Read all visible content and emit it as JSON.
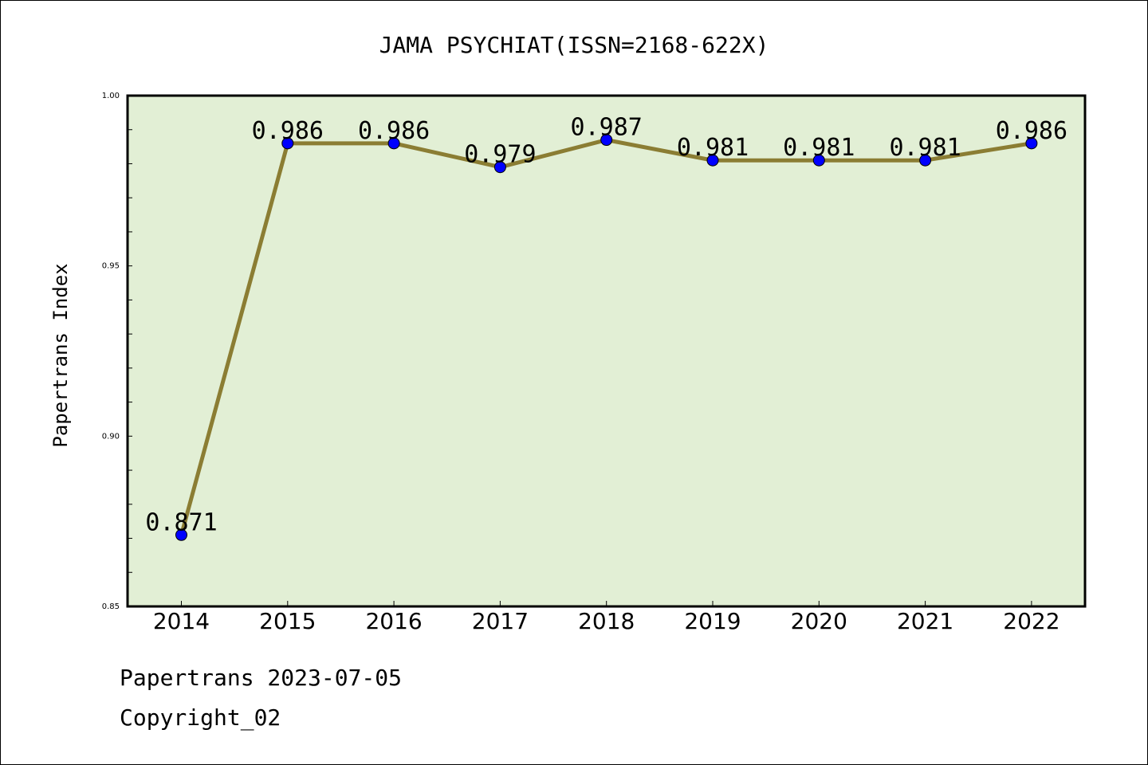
{
  "chart_data": {
    "type": "line",
    "title": "JAMA PSYCHIAT(ISSN=2168-622X)",
    "xlabel": "",
    "ylabel": "Papertrans Index",
    "categories": [
      "2014",
      "2015",
      "2016",
      "2017",
      "2018",
      "2019",
      "2020",
      "2021",
      "2022"
    ],
    "series": [
      {
        "values": [
          0.871,
          0.986,
          0.986,
          0.979,
          0.987,
          0.981,
          0.981,
          0.981,
          0.986
        ],
        "labels": [
          "0.871",
          "0.986",
          "0.986",
          "0.979",
          "0.987",
          "0.981",
          "0.981",
          "0.981",
          "0.986"
        ]
      }
    ],
    "ylim": [
      0.85,
      1.0
    ],
    "yticks": [
      "0.85",
      "0.90",
      "0.95",
      "1.00"
    ],
    "grid": false,
    "colors": {
      "plot_background": "#e2efd5",
      "line": "#8b7d33",
      "marker": "#0000ff"
    }
  },
  "footer": {
    "line1": "Papertrans 2023-07-05",
    "line2": "Copyright_02"
  }
}
